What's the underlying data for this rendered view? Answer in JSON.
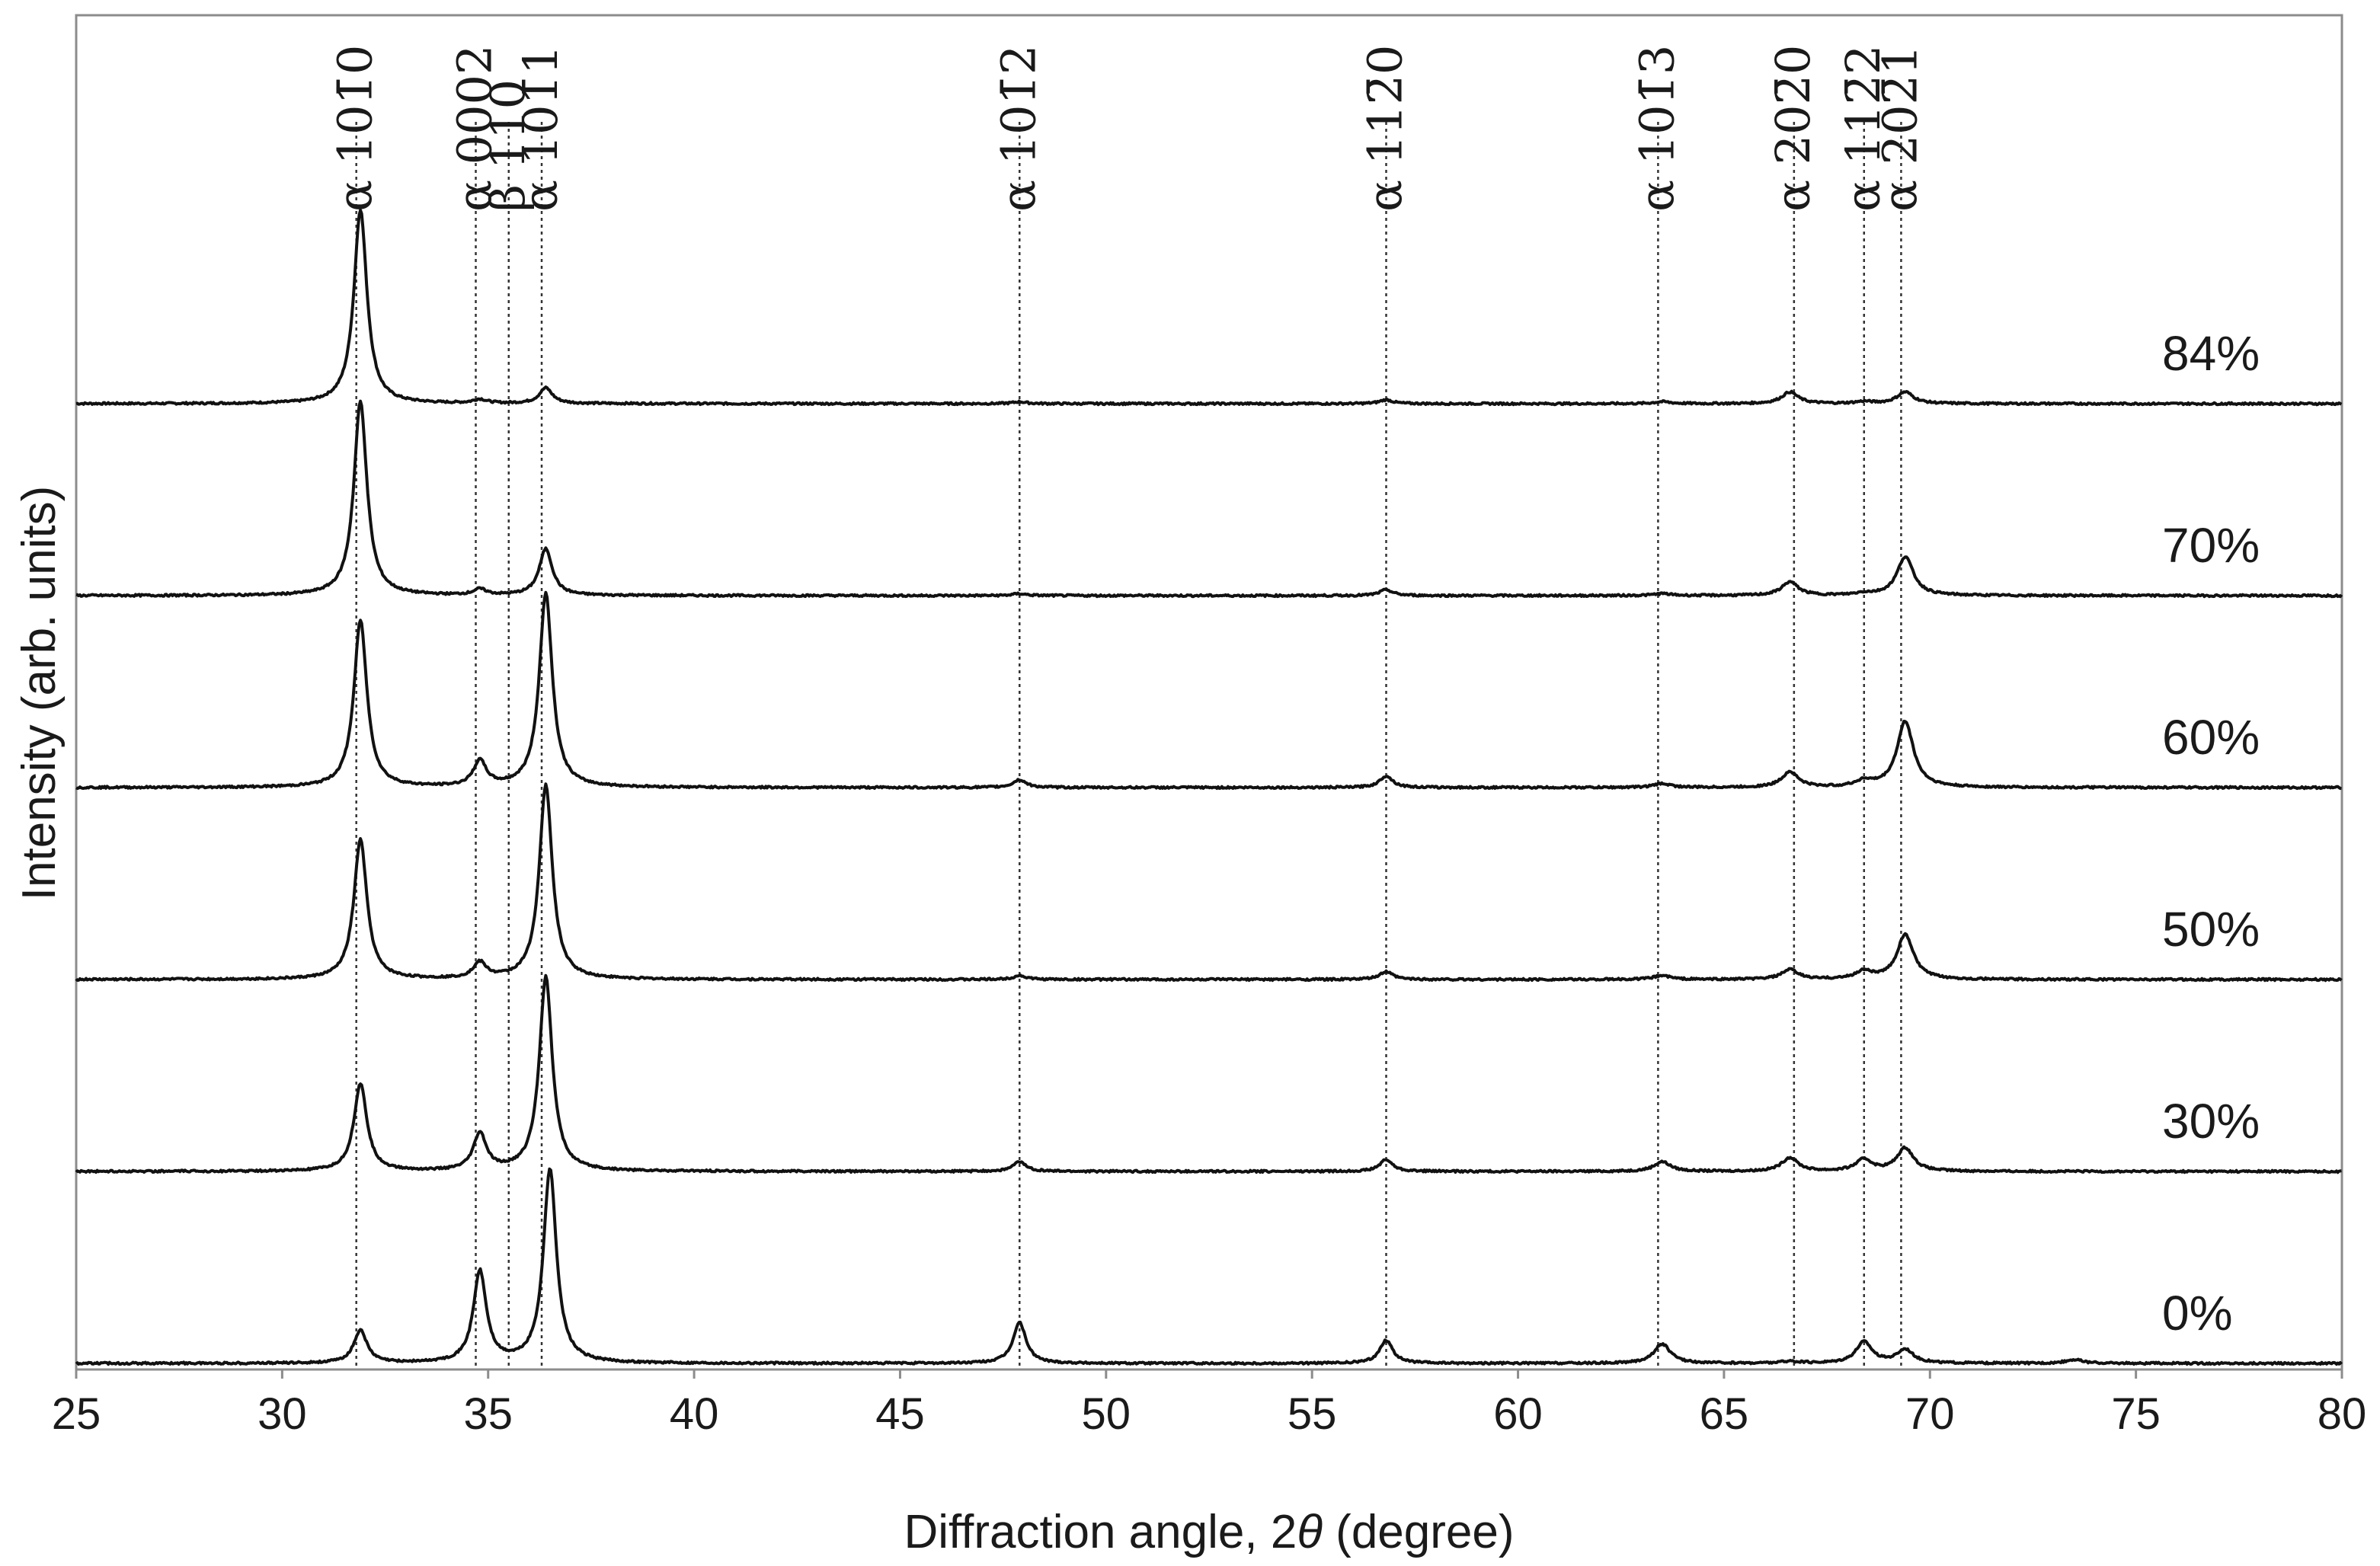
{
  "chart_data": {
    "type": "line",
    "title": "",
    "xlabel_parts": [
      "Diffraction angle, 2",
      "θ",
      " (degree)"
    ],
    "ylabel": "Intensity (arb. units)",
    "xlim": [
      25,
      80
    ],
    "xticks": [
      25,
      30,
      35,
      40,
      45,
      50,
      55,
      60,
      65,
      70,
      75,
      80
    ],
    "grid": false,
    "peak_markers": [
      {
        "label": "α 101̄0",
        "x": 31.8
      },
      {
        "label": "α 0002",
        "x": 34.7
      },
      {
        "label": "β 110",
        "x": 35.5
      },
      {
        "label": "α 101̄1",
        "x": 36.3
      },
      {
        "label": "α 101̄2",
        "x": 47.9
      },
      {
        "label": "α 112̄0",
        "x": 56.8
      },
      {
        "label": "α 101̄3",
        "x": 63.4
      },
      {
        "label": "α 202̄0",
        "x": 66.7
      },
      {
        "label": "α 112̄2",
        "x": 68.4
      },
      {
        "label": "α 202̄1",
        "x": 69.3
      }
    ],
    "series": [
      {
        "name": "84%",
        "peaks": [
          [
            31.9,
            100
          ],
          [
            34.8,
            2
          ],
          [
            36.4,
            8
          ],
          [
            47.9,
            1
          ],
          [
            56.8,
            2
          ],
          [
            63.5,
            1
          ],
          [
            66.6,
            6
          ],
          [
            68.4,
            1
          ],
          [
            69.4,
            6
          ]
        ]
      },
      {
        "name": "70%",
        "peaks": [
          [
            31.9,
            100
          ],
          [
            34.8,
            3
          ],
          [
            36.4,
            24
          ],
          [
            47.9,
            1
          ],
          [
            56.8,
            3
          ],
          [
            63.5,
            1
          ],
          [
            66.6,
            7
          ],
          [
            68.4,
            1
          ],
          [
            69.4,
            20
          ]
        ]
      },
      {
        "name": "60%",
        "peaks": [
          [
            31.9,
            86
          ],
          [
            34.8,
            13
          ],
          [
            36.4,
            100
          ],
          [
            47.9,
            4
          ],
          [
            56.8,
            6
          ],
          [
            63.5,
            2
          ],
          [
            66.6,
            8
          ],
          [
            68.4,
            3
          ],
          [
            69.4,
            34
          ]
        ]
      },
      {
        "name": "50%",
        "peaks": [
          [
            31.9,
            72
          ],
          [
            34.8,
            8
          ],
          [
            36.4,
            100
          ],
          [
            47.9,
            2
          ],
          [
            56.8,
            4
          ],
          [
            63.5,
            2
          ],
          [
            66.6,
            5
          ],
          [
            68.4,
            4
          ],
          [
            69.4,
            23
          ]
        ]
      },
      {
        "name": "30%",
        "peaks": [
          [
            31.9,
            45
          ],
          [
            34.8,
            19
          ],
          [
            36.4,
            100
          ],
          [
            47.9,
            5
          ],
          [
            56.8,
            6
          ],
          [
            63.5,
            5
          ],
          [
            66.6,
            7
          ],
          [
            68.4,
            6
          ],
          [
            69.4,
            12
          ]
        ]
      },
      {
        "name": "0%",
        "peaks": [
          [
            31.9,
            17
          ],
          [
            34.8,
            47
          ],
          [
            36.5,
            100
          ],
          [
            47.9,
            21
          ],
          [
            56.8,
            12
          ],
          [
            63.5,
            10
          ],
          [
            66.6,
            1
          ],
          [
            68.4,
            11
          ],
          [
            69.4,
            7
          ],
          [
            73.5,
            2
          ]
        ]
      }
    ]
  }
}
